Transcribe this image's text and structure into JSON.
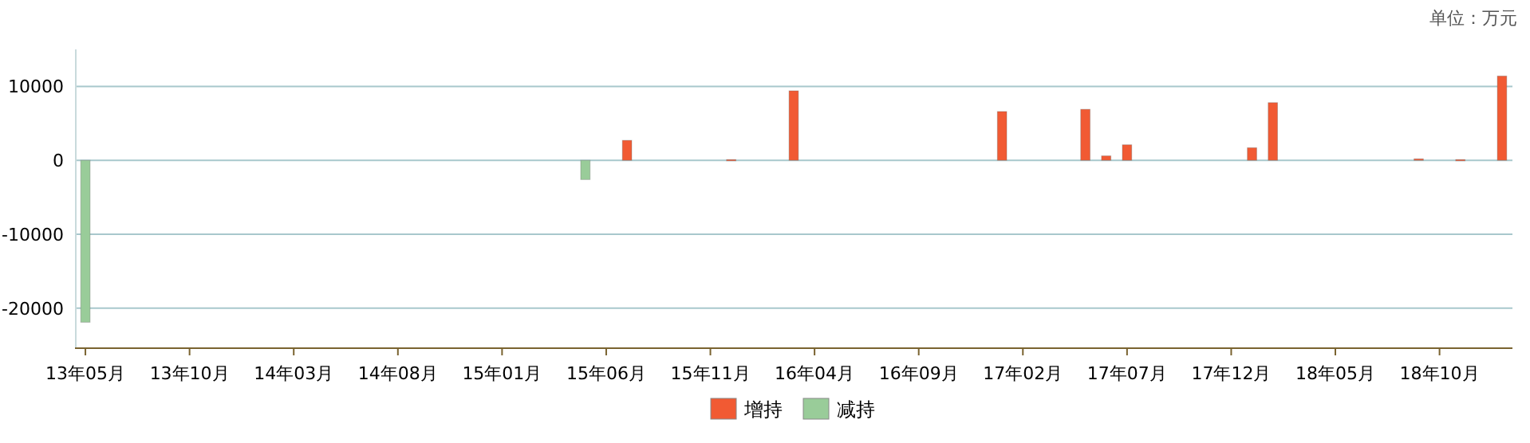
{
  "chart_data": {
    "type": "bar",
    "annotations": [
      "单位：万元"
    ],
    "categories": [
      "13年05月",
      null,
      null,
      null,
      null,
      "13年10月",
      null,
      null,
      null,
      null,
      "14年03月",
      null,
      null,
      null,
      null,
      "14年08月",
      null,
      null,
      null,
      null,
      "15年01月",
      null,
      null,
      null,
      null,
      "15年06月",
      null,
      null,
      null,
      null,
      "15年11月",
      null,
      null,
      null,
      null,
      "16年04月",
      null,
      null,
      null,
      null,
      "16年09月",
      null,
      null,
      null,
      null,
      "17年02月",
      null,
      null,
      null,
      null,
      "17年07月",
      null,
      null,
      null,
      null,
      "17年12月",
      null,
      null,
      null,
      null,
      "18年05月",
      null,
      null,
      null,
      null,
      "18年10月",
      null,
      null,
      null
    ],
    "series": [
      {
        "name": "增持",
        "color": "#f15a33",
        "values": [
          null,
          null,
          null,
          null,
          null,
          null,
          null,
          null,
          null,
          null,
          null,
          null,
          null,
          null,
          null,
          null,
          null,
          null,
          null,
          null,
          null,
          null,
          null,
          null,
          null,
          null,
          2700,
          null,
          null,
          null,
          null,
          100,
          null,
          null,
          9400,
          null,
          null,
          null,
          null,
          null,
          null,
          null,
          null,
          null,
          6600,
          null,
          null,
          null,
          6900,
          600,
          2100,
          null,
          null,
          null,
          null,
          null,
          1700,
          7800,
          null,
          null,
          null,
          null,
          null,
          null,
          200,
          null,
          100,
          null,
          11400
        ]
      },
      {
        "name": "减持",
        "color": "#99cc99",
        "values": [
          -21900,
          null,
          null,
          null,
          null,
          null,
          null,
          null,
          null,
          null,
          null,
          null,
          null,
          null,
          null,
          null,
          null,
          null,
          null,
          null,
          null,
          null,
          null,
          null,
          -2600,
          null,
          null,
          null,
          null,
          null,
          null,
          null,
          null,
          null,
          null,
          null,
          null,
          null,
          null,
          null,
          null,
          null,
          null,
          null,
          null,
          null,
          null,
          null,
          null,
          null,
          null,
          null,
          null,
          null,
          null,
          null,
          null,
          null,
          null,
          null,
          null,
          null,
          null,
          null,
          null,
          null,
          null,
          null,
          null
        ]
      }
    ],
    "ylim": [
      -25300,
      15000
    ],
    "yticks": [
      -20000,
      -10000,
      0,
      10000
    ],
    "grid": "y",
    "legend": "bottom"
  }
}
